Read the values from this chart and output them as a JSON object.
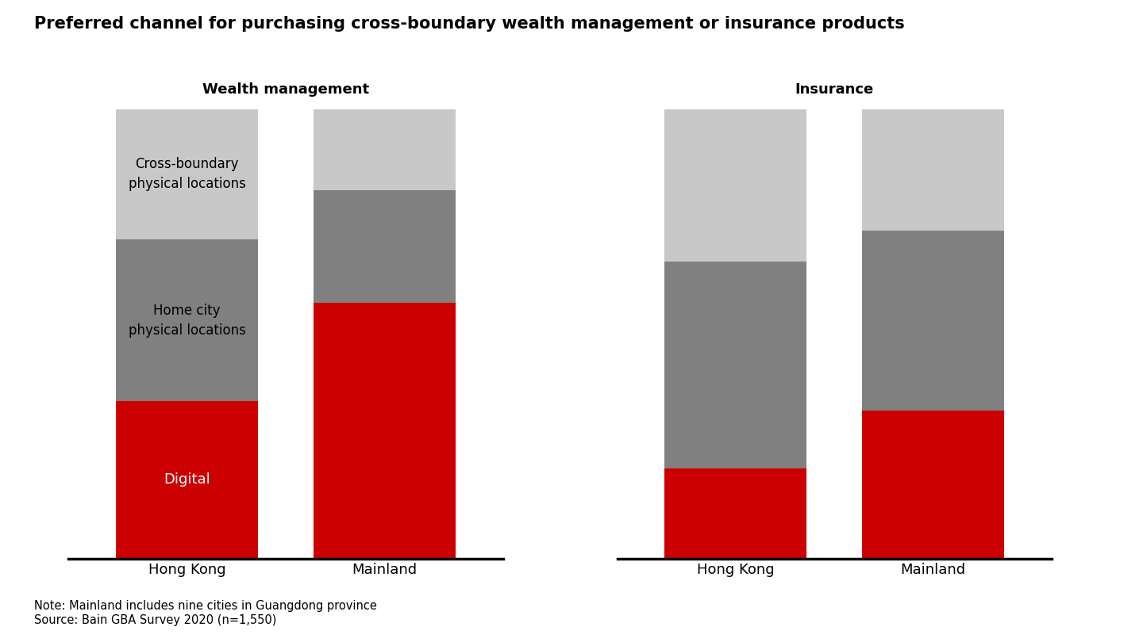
{
  "title": "Preferred channel for purchasing cross-boundary wealth management or insurance products",
  "subtitle_wm": "Wealth management",
  "subtitle_ins": "Insurance",
  "note": "Note: Mainland includes nine cities in Guangdong province\nSource: Bain GBA Survey 2020 (n=1,550)",
  "categories": [
    "Hong Kong",
    "Mainland"
  ],
  "wm_data": [
    [
      35,
      57
    ],
    [
      36,
      25
    ],
    [
      29,
      18
    ]
  ],
  "ins_data": [
    [
      20,
      33
    ],
    [
      46,
      40
    ],
    [
      34,
      27
    ]
  ],
  "colors": [
    "#CC0000",
    "#808080",
    "#C8C8C8"
  ],
  "segment_labels": [
    "Digital",
    "Home city\nphysical locations",
    "Cross-boundary\nphysical locations"
  ],
  "background_color": "#FFFFFF",
  "title_fontsize": 15,
  "subtitle_fontsize": 13,
  "label_fontsize": 12,
  "tick_fontsize": 13,
  "note_fontsize": 10.5,
  "bar_width": 0.72
}
